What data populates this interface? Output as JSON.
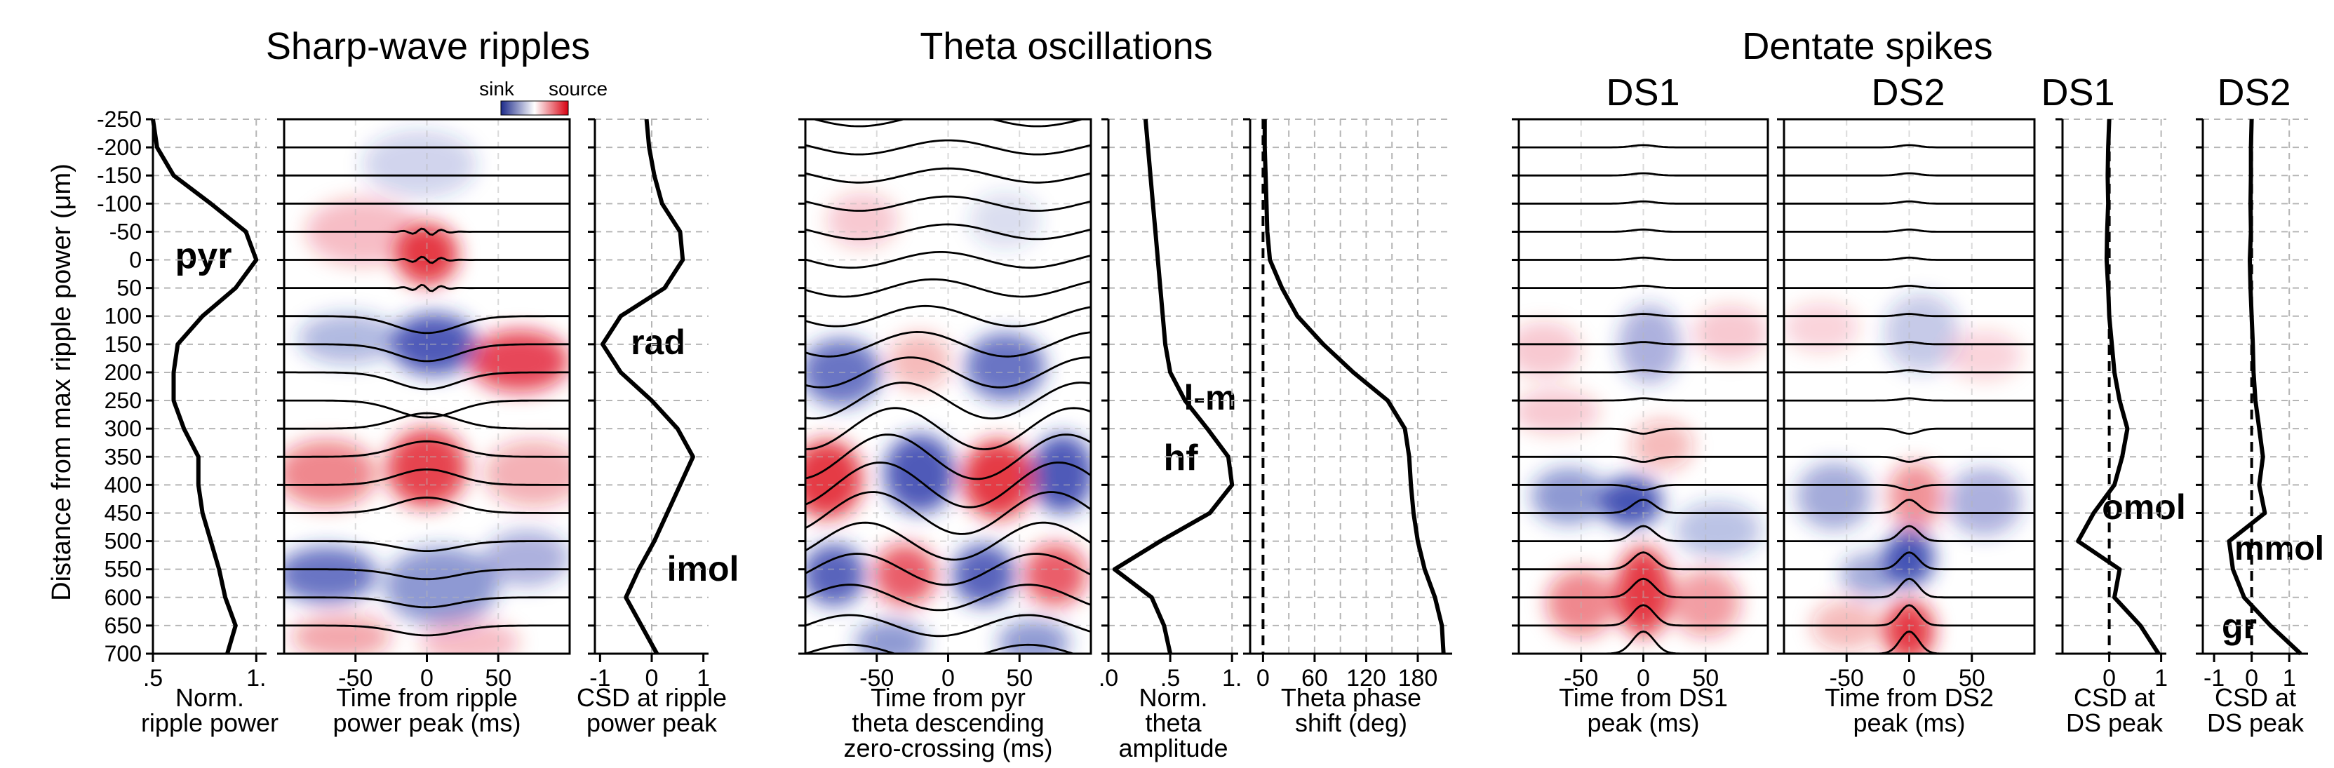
{
  "section_titles": [
    "Sharp-wave ripples",
    "Theta oscillations",
    "Dentate spikes"
  ],
  "ylabel": "Distance from max ripple power (μm)",
  "colorbar": {
    "sink_label": "sink",
    "source_label": "source"
  },
  "label_colors": {
    "pyr": "#000000",
    "rad": "#3d8b3d",
    "imol": "#9acd32",
    "l-m": "#d4b86a",
    "hf": "#000000",
    "omol": "#22c3c8",
    "mmol": "#8a76c9",
    "gr": "#a89960"
  },
  "chart_data": [
    {
      "id": "ripple_power",
      "type": "line",
      "xlabel": "Norm.\nripple power",
      "xticks": [
        ".5",
        "1."
      ],
      "xlim": [
        0.5,
        1.05
      ],
      "ylim": [
        -250,
        700
      ],
      "depths": [
        -250,
        -200,
        -150,
        -100,
        -50,
        0,
        50,
        100,
        150,
        200,
        250,
        300,
        350,
        400,
        450,
        500,
        550,
        600,
        650,
        700
      ],
      "values": [
        0.5,
        0.52,
        0.6,
        0.78,
        0.95,
        1.0,
        0.9,
        0.74,
        0.62,
        0.6,
        0.6,
        0.65,
        0.72,
        0.72,
        0.74,
        0.78,
        0.82,
        0.85,
        0.9,
        0.86
      ],
      "annotations": [
        {
          "text": "pyr",
          "x": 0.63,
          "y": -2
        }
      ]
    },
    {
      "id": "swr_csd_map",
      "type": "heatmap",
      "xlabel": "Time from ripple\npower peak (ms)",
      "xticks": [
        "-50",
        "0",
        "50"
      ],
      "xlim": [
        -100,
        100
      ],
      "ylim": [
        -250,
        700
      ]
    },
    {
      "id": "swr_csd_profile",
      "type": "line",
      "xlabel": "CSD at ripple\npower peak",
      "xticks": [
        "-1",
        "0",
        "1"
      ],
      "xlim": [
        -1.1,
        1.1
      ],
      "ylim": [
        -250,
        700
      ],
      "depths": [
        -250,
        -200,
        -150,
        -100,
        -50,
        0,
        50,
        100,
        150,
        200,
        250,
        300,
        350,
        400,
        450,
        500,
        550,
        600,
        650,
        700
      ],
      "values": [
        -0.1,
        -0.05,
        0.05,
        0.2,
        0.55,
        0.6,
        0.25,
        -0.6,
        -0.95,
        -0.6,
        0.0,
        0.5,
        0.8,
        0.55,
        0.3,
        0.05,
        -0.25,
        -0.5,
        -0.2,
        0.1
      ],
      "annotations": [
        {
          "text": "rad",
          "x": 0.0,
          "y": 150
        },
        {
          "text": "imol",
          "x": 0.05,
          "y": 560
        }
      ]
    },
    {
      "id": "theta_csd_map",
      "type": "heatmap",
      "xlabel": "Time from pyr\ntheta descending\nzero-crossing (ms)",
      "xticks": [
        "-50",
        "0",
        "50"
      ],
      "xlim": [
        -100,
        100
      ],
      "ylim": [
        -250,
        700
      ]
    },
    {
      "id": "theta_amplitude",
      "type": "line",
      "xlabel": "Norm.\ntheta\namplitude",
      "xticks": [
        ".0",
        ".5",
        "1."
      ],
      "xlim": [
        0,
        1.05
      ],
      "ylim": [
        -250,
        700
      ],
      "depths": [
        -250,
        -200,
        -150,
        -100,
        -50,
        0,
        50,
        100,
        150,
        200,
        250,
        300,
        350,
        400,
        450,
        500,
        550,
        600,
        650,
        700
      ],
      "values": [
        0.3,
        0.32,
        0.34,
        0.36,
        0.38,
        0.4,
        0.42,
        0.44,
        0.46,
        0.5,
        0.62,
        0.8,
        0.97,
        1.0,
        0.82,
        0.42,
        0.05,
        0.35,
        0.45,
        0.5
      ],
      "annotations": [
        {
          "text": "l-m",
          "x": 0.9,
          "y": 245
        },
        {
          "text": "hf",
          "x": 0.6,
          "y": 350
        }
      ]
    },
    {
      "id": "theta_phase",
      "type": "line",
      "xlabel": "Theta phase\nshift (deg)",
      "xticks": [
        "0",
        "60",
        "120",
        "180"
      ],
      "xlim": [
        -15,
        220
      ],
      "ylim": [
        -250,
        700
      ],
      "depths": [
        -250,
        -200,
        -150,
        -100,
        -50,
        0,
        50,
        100,
        150,
        200,
        250,
        300,
        350,
        400,
        450,
        500,
        550,
        600,
        650,
        700
      ],
      "values": [
        2,
        2,
        3,
        4,
        5,
        8,
        22,
        40,
        70,
        105,
        145,
        165,
        170,
        172,
        175,
        180,
        188,
        200,
        208,
        210
      ],
      "reference_line": 0
    },
    {
      "id": "ds1_csd_map",
      "type": "heatmap",
      "title": "DS1",
      "xlabel": "Time from DS1\npeak (ms)",
      "xticks": [
        "-50",
        "0",
        "50"
      ],
      "xlim": [
        -100,
        100
      ],
      "ylim": [
        -250,
        700
      ]
    },
    {
      "id": "ds2_csd_map",
      "type": "heatmap",
      "title": "DS2",
      "xlabel": "Time from DS2\npeak (ms)",
      "xticks": [
        "-50",
        "0",
        "50"
      ],
      "xlim": [
        -100,
        100
      ],
      "ylim": [
        -250,
        700
      ]
    },
    {
      "id": "ds1_csd_profile",
      "type": "line",
      "title": "DS1",
      "xlabel": "CSD at\nDS peak",
      "xticks": [
        "0",
        "1"
      ],
      "xlim": [
        -0.9,
        1.1
      ],
      "ylim": [
        -250,
        700
      ],
      "depths": [
        -250,
        -200,
        -150,
        -100,
        -50,
        0,
        50,
        100,
        150,
        200,
        250,
        300,
        350,
        400,
        450,
        500,
        550,
        600,
        650,
        700
      ],
      "values": [
        0.0,
        -0.02,
        -0.03,
        -0.02,
        -0.04,
        -0.05,
        -0.02,
        0.0,
        0.05,
        0.1,
        0.2,
        0.35,
        0.25,
        0.1,
        -0.3,
        -0.6,
        0.2,
        0.1,
        0.6,
        0.95
      ],
      "reference_line": 0,
      "annotations": [
        {
          "text": "omol",
          "x": 0.35,
          "y": 460
        }
      ]
    },
    {
      "id": "ds2_csd_profile",
      "type": "line",
      "title": "DS2",
      "xlabel": "CSD at\nDS peak",
      "xticks": [
        "-1",
        "0",
        "1"
      ],
      "xlim": [
        -1.3,
        1.5
      ],
      "ylim": [
        -250,
        700
      ],
      "depths": [
        -250,
        -200,
        -150,
        -100,
        -50,
        0,
        50,
        100,
        150,
        200,
        250,
        300,
        350,
        400,
        450,
        500,
        550,
        600,
        650,
        700
      ],
      "values": [
        0.0,
        -0.02,
        -0.02,
        -0.03,
        -0.02,
        -0.05,
        -0.03,
        0.0,
        0.03,
        0.05,
        0.1,
        0.2,
        0.3,
        0.2,
        0.35,
        -0.6,
        -0.5,
        -0.2,
        0.5,
        1.3
      ],
      "reference_line": 0,
      "annotations": [
        {
          "text": "mmol",
          "x": 0.9,
          "y": 505
        },
        {
          "text": "gr",
          "x": -0.5,
          "y": 660
        }
      ]
    }
  ]
}
